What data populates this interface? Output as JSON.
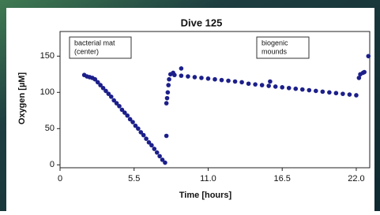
{
  "chart_data": {
    "type": "scatter",
    "title": "Dive 125",
    "x_label": "Time [hours]",
    "y_label": "Oxygen [µM]",
    "annotations": [
      [
        "bacterial mat",
        "(center)"
      ],
      [
        "biogenic",
        "mounds"
      ]
    ],
    "color": "#1c1f8a",
    "x": [
      1.8,
      2.0,
      2.2,
      2.4,
      2.6,
      2.8,
      3.0,
      3.2,
      3.4,
      3.6,
      3.8,
      4.0,
      4.2,
      4.4,
      4.6,
      4.8,
      5.0,
      5.2,
      5.4,
      5.6,
      5.8,
      6.0,
      6.2,
      6.4,
      6.6,
      6.8,
      7.0,
      7.2,
      7.4,
      7.6,
      7.8,
      7.9,
      7.9,
      7.95,
      8.0,
      8.05,
      8.1,
      8.2,
      8.4,
      9.0,
      8.5,
      9.0,
      9.5,
      10.0,
      10.5,
      11.0,
      11.5,
      12.0,
      12.5,
      13.0,
      13.5,
      14.0,
      14.5,
      15.0,
      15.5,
      15.6,
      16.0,
      16.5,
      17.0,
      17.5,
      18.0,
      18.5,
      19.0,
      19.5,
      20.0,
      20.5,
      21.0,
      21.5,
      22.0,
      22.2,
      22.3,
      22.5,
      22.6,
      22.9
    ],
    "values": [
      124,
      122,
      121,
      120,
      118,
      114,
      110,
      106,
      102,
      98,
      94,
      89,
      85,
      81,
      76,
      72,
      68,
      63,
      59,
      54,
      50,
      45,
      41,
      36,
      31,
      27,
      22,
      17,
      12,
      7,
      3,
      40,
      85,
      92,
      100,
      110,
      118,
      125,
      127,
      133,
      124,
      123,
      122,
      121,
      120,
      119,
      118,
      117,
      116,
      115,
      114,
      112,
      111,
      110,
      109,
      115,
      108,
      107,
      106,
      105,
      104,
      103,
      102,
      101,
      100,
      99,
      98,
      97,
      96,
      120,
      125,
      127,
      128,
      150
    ],
    "xlim": [
      0,
      23
    ],
    "ylim": [
      -4,
      184
    ],
    "xticks": [
      0,
      5.5,
      {
        "value": 11,
        "label": "11.0"
      },
      16.5,
      {
        "value": 22,
        "label": "22.0"
      }
    ],
    "yticks": [
      0,
      50,
      100,
      150
    ]
  }
}
